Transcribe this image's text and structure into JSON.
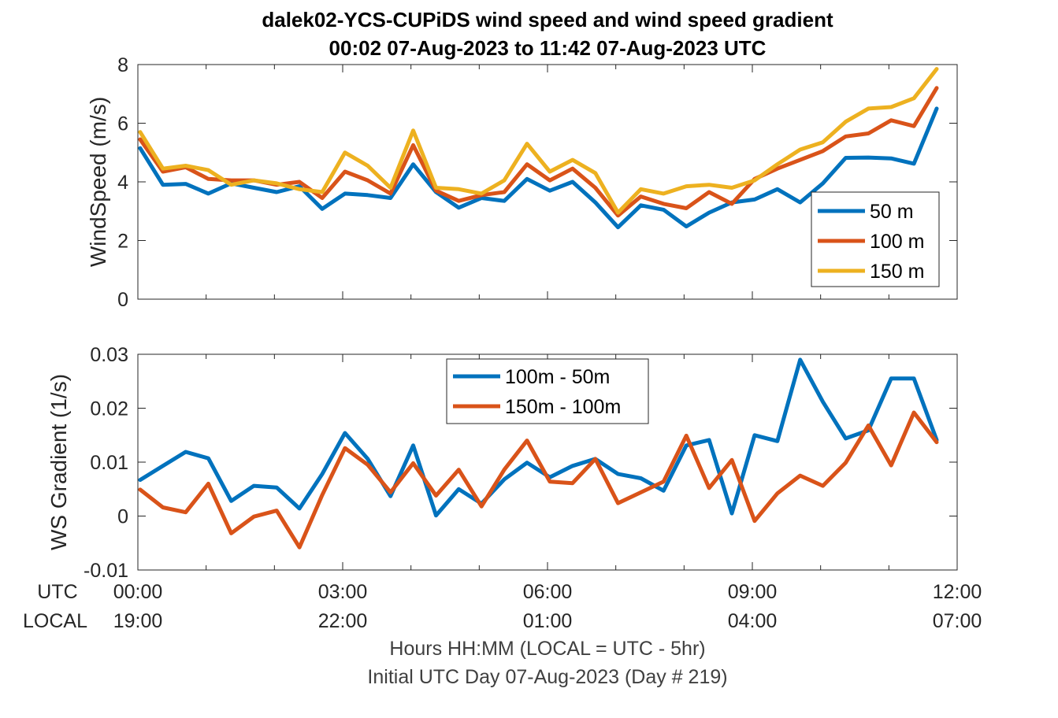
{
  "title_line1": "dalek02-YCS-CUPiDS  wind speed and wind speed gradient",
  "title_line2": "00:02 07-Aug-2023 to 11:42 07-Aug-2023  UTC",
  "row_label_utc": "UTC",
  "row_label_local": "LOCAL",
  "utc_ticks": [
    "00:00",
    "03:00",
    "06:00",
    "09:00",
    "12:00"
  ],
  "local_ticks": [
    "19:00",
    "22:00",
    "01:00",
    "04:00",
    "07:00"
  ],
  "footer_line1": "Hours HH:MM  (LOCAL = UTC - 5hr)",
  "footer_line2": "Initial UTC Day 07-Aug-2023 (Day # 219)",
  "colors": {
    "blue": "#0072BD",
    "orange": "#D95319",
    "yellow": "#EDB120"
  },
  "chart_data": [
    {
      "type": "line",
      "ylabel": "WindSpeed (m/s)",
      "xlim": [
        0,
        12
      ],
      "ylim": [
        0,
        8
      ],
      "y_ticks": [
        "0",
        "2",
        "4",
        "6",
        "8"
      ],
      "y_tick_values": [
        0,
        2,
        4,
        6,
        8
      ],
      "legend_position": "right",
      "x": [
        0.033,
        0.367,
        0.7,
        1.033,
        1.367,
        1.7,
        2.033,
        2.367,
        2.7,
        3.033,
        3.367,
        3.7,
        4.033,
        4.367,
        4.7,
        5.033,
        5.367,
        5.7,
        6.033,
        6.367,
        6.7,
        7.033,
        7.367,
        7.7,
        8.033,
        8.367,
        8.7,
        9.033,
        9.367,
        9.7,
        10.033,
        10.367,
        10.7,
        11.033,
        11.367,
        11.7
      ],
      "series": [
        {
          "name": "50 m",
          "color": "#0072BD",
          "values": [
            5.15,
            3.9,
            3.93,
            3.6,
            3.95,
            3.8,
            3.65,
            3.85,
            3.08,
            3.6,
            3.55,
            3.45,
            4.6,
            3.65,
            3.12,
            3.45,
            3.35,
            4.1,
            3.7,
            4.0,
            3.3,
            2.45,
            3.2,
            3.05,
            2.48,
            2.95,
            3.3,
            3.4,
            3.75,
            3.3,
            3.95,
            4.82,
            4.83,
            4.8,
            4.62,
            6.5
          ]
        },
        {
          "name": "100 m",
          "color": "#D95319",
          "values": [
            5.45,
            4.35,
            4.5,
            4.1,
            4.05,
            4.05,
            3.9,
            4.0,
            3.45,
            4.35,
            4.05,
            3.6,
            5.25,
            3.7,
            3.35,
            3.55,
            3.65,
            4.6,
            4.05,
            4.45,
            3.8,
            2.85,
            3.5,
            3.25,
            3.1,
            3.65,
            3.25,
            4.1,
            4.45,
            4.75,
            5.05,
            5.55,
            5.65,
            6.1,
            5.9,
            7.2
          ]
        },
        {
          "name": "150 m",
          "color": "#EDB120",
          "values": [
            5.7,
            4.45,
            4.55,
            4.4,
            3.9,
            4.05,
            3.95,
            3.75,
            3.65,
            5.0,
            4.55,
            3.8,
            5.75,
            3.8,
            3.75,
            3.6,
            4.05,
            5.3,
            4.35,
            4.75,
            4.3,
            2.95,
            3.75,
            3.6,
            3.85,
            3.9,
            3.8,
            4.05,
            4.6,
            5.1,
            5.35,
            6.05,
            6.5,
            6.55,
            6.85,
            7.85
          ]
        }
      ]
    },
    {
      "type": "line",
      "ylabel": "WS Gradient (1/s)",
      "xlim": [
        0,
        12
      ],
      "ylim": [
        -0.01,
        0.03
      ],
      "y_ticks": [
        "-0.01",
        "0",
        "0.01",
        "0.02",
        "0.03"
      ],
      "y_tick_values": [
        -0.01,
        0,
        0.01,
        0.02,
        0.03
      ],
      "legend_position": "top",
      "x": [
        0.033,
        0.367,
        0.7,
        1.033,
        1.367,
        1.7,
        2.033,
        2.367,
        2.7,
        3.033,
        3.367,
        3.7,
        4.033,
        4.367,
        4.7,
        5.033,
        5.367,
        5.7,
        6.033,
        6.367,
        6.7,
        7.033,
        7.367,
        7.7,
        8.033,
        8.367,
        8.7,
        9.033,
        9.367,
        9.7,
        10.033,
        10.367,
        10.7,
        11.033,
        11.367,
        11.7
      ],
      "series": [
        {
          "name": "100m - 50m",
          "color": "#0072BD",
          "values": [
            0.0067,
            0.0093,
            0.0119,
            0.0107,
            0.0028,
            0.0056,
            0.0053,
            0.0014,
            0.0078,
            0.0154,
            0.0106,
            0.0037,
            0.0131,
            0.0001,
            0.005,
            0.0023,
            0.0068,
            0.0099,
            0.0072,
            0.0093,
            0.0106,
            0.0078,
            0.007,
            0.0047,
            0.0131,
            0.0141,
            0.0005,
            0.015,
            0.0139,
            0.029,
            0.0212,
            0.0144,
            0.0159,
            0.0255,
            0.0255,
            0.0141
          ]
        },
        {
          "name": "150m - 100m",
          "color": "#D95319",
          "values": [
            0.0049,
            0.0016,
            0.0007,
            0.006,
            -0.0032,
            -0.0001,
            0.001,
            -0.0058,
            0.0039,
            0.0126,
            0.0095,
            0.0044,
            0.0098,
            0.0038,
            0.0086,
            0.0018,
            0.0086,
            0.014,
            0.0064,
            0.0061,
            0.0106,
            0.0024,
            0.0044,
            0.0064,
            0.0149,
            0.0052,
            0.0104,
            -0.0009,
            0.0042,
            0.0075,
            0.0056,
            0.0099,
            0.0168,
            0.0094,
            0.0192,
            0.0137
          ]
        }
      ]
    }
  ]
}
